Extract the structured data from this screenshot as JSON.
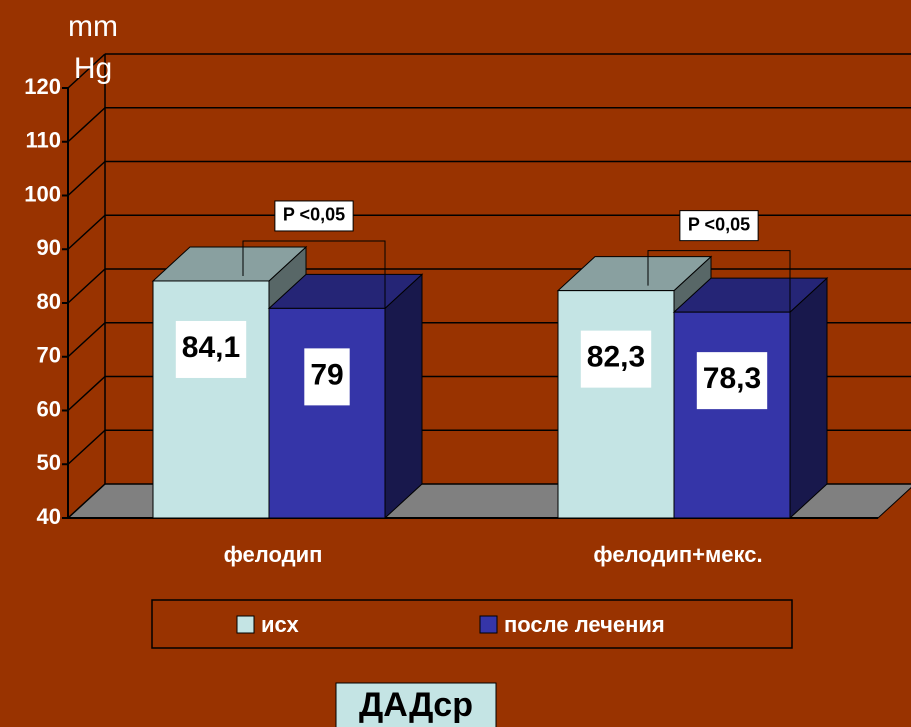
{
  "chart_data": {
    "type": "bar3d",
    "title": "ДАДср",
    "y_label": "mm Hg",
    "categories": [
      "фелодип",
      "фелодип+мекс."
    ],
    "series": [
      {
        "name": "исх",
        "color": "#c4e4e4",
        "values": [
          84.1,
          82.3
        ],
        "value_labels": [
          "84,1",
          "82,3"
        ]
      },
      {
        "name": "после лечения",
        "color": "#3535a8",
        "values": [
          79,
          78.3
        ],
        "value_labels": [
          "79",
          "78,3"
        ]
      }
    ],
    "annotations": [
      "P <0,05",
      "P <0,05"
    ],
    "ylim": [
      40,
      120
    ],
    "yticks": [
      40,
      50,
      60,
      70,
      80,
      90,
      100,
      110,
      120
    ],
    "grid": true,
    "background": "#993300"
  }
}
